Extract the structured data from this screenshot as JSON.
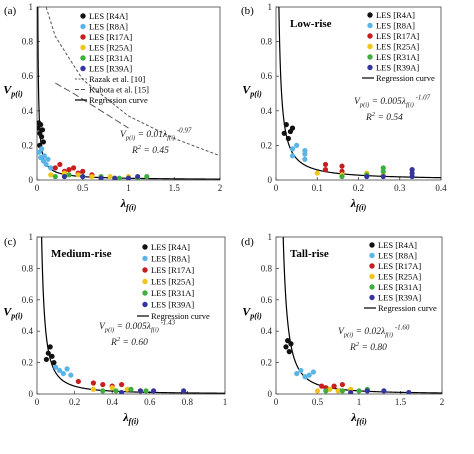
{
  "palette": {
    "R4A": "#111111",
    "R8A": "#5ab4e8",
    "R17A": "#c81e1e",
    "R25A": "#f0c419",
    "R31A": "#3fae3f",
    "R39A": "#3535a0"
  },
  "chart_data": [
    {
      "type": "scatter",
      "panel_label": "(a)",
      "title": "",
      "xlabel": "λf(i)",
      "ylabel": "Vp(i)",
      "xlim": [
        0,
        2
      ],
      "ylim": [
        0,
        1
      ],
      "xticks": [
        "0",
        "0.5",
        "1",
        "1.5",
        "2"
      ],
      "yticks": [
        "0",
        "0.2",
        "0.4",
        "0.6",
        "0.8",
        "1"
      ],
      "grid": false,
      "legend_position": "top-right",
      "equation": {
        "coef": "0.01",
        "exponent": "-0.97",
        "r2": "0.45"
      },
      "references": [
        {
          "name": "Razak et al. [10]",
          "style": "dashed-short",
          "points": [
            [
              0.1,
              1.0
            ],
            [
              0.2,
              0.83
            ],
            [
              0.5,
              0.58
            ],
            [
              1.0,
              0.37
            ],
            [
              1.5,
              0.24
            ],
            [
              2.0,
              0.14
            ]
          ]
        },
        {
          "name": "Kubota et al. [15]",
          "style": "dashed-long",
          "points": [
            [
              0.2,
              0.56
            ],
            [
              0.4,
              0.5
            ],
            [
              0.7,
              0.4
            ],
            [
              1.0,
              0.3
            ]
          ]
        }
      ],
      "curve": {
        "name": "Regression curve",
        "a": 0.01,
        "b": -0.97
      },
      "series": [
        {
          "name": "LES [R4A]",
          "points": [
            [
              0.01,
              0.3
            ],
            [
              0.02,
              0.33
            ],
            [
              0.03,
              0.27
            ],
            [
              0.04,
              0.32
            ],
            [
              0.05,
              0.25
            ],
            [
              0.06,
              0.29
            ],
            [
              0.07,
              0.22
            ],
            [
              0.03,
              0.2
            ]
          ]
        },
        {
          "name": "LES [R8A]",
          "points": [
            [
              0.02,
              0.16
            ],
            [
              0.04,
              0.13
            ],
            [
              0.05,
              0.18
            ],
            [
              0.07,
              0.11
            ],
            [
              0.08,
              0.14
            ],
            [
              0.1,
              0.09
            ],
            [
              0.12,
              0.12
            ],
            [
              0.15,
              0.07
            ]
          ]
        },
        {
          "name": "LES [R17A]",
          "points": [
            [
              0.2,
              0.07
            ],
            [
              0.25,
              0.09
            ],
            [
              0.3,
              0.05
            ],
            [
              0.35,
              0.06
            ],
            [
              0.4,
              0.07
            ],
            [
              0.45,
              0.04
            ],
            [
              0.5,
              0.05
            ],
            [
              0.6,
              0.03
            ]
          ]
        },
        {
          "name": "LES [R25A]",
          "points": [
            [
              0.15,
              0.03
            ],
            [
              0.3,
              0.04
            ],
            [
              0.45,
              0.03
            ],
            [
              0.6,
              0.02
            ],
            [
              0.8,
              0.02
            ],
            [
              1.0,
              0.02
            ]
          ]
        },
        {
          "name": "LES [R31A]",
          "points": [
            [
              0.2,
              0.02
            ],
            [
              0.35,
              0.03
            ],
            [
              0.5,
              0.02
            ],
            [
              0.7,
              0.02
            ],
            [
              0.9,
              0.01
            ],
            [
              1.1,
              0.01
            ],
            [
              1.2,
              0.02
            ]
          ]
        },
        {
          "name": "LES [R39A]",
          "points": [
            [
              0.3,
              0.02
            ],
            [
              0.5,
              0.02
            ],
            [
              0.7,
              0.01
            ],
            [
              0.85,
              0.01
            ],
            [
              1.0,
              0.01
            ],
            [
              1.1,
              0.02
            ]
          ]
        }
      ]
    },
    {
      "type": "scatter",
      "panel_label": "(b)",
      "title": "Low-rise",
      "xlabel": "λf(i)",
      "ylabel": "Vp(i)",
      "xlim": [
        0,
        0.4
      ],
      "ylim": [
        0,
        1
      ],
      "xticks": [
        "0",
        "0.1",
        "0.2",
        "0.3",
        "0.4"
      ],
      "yticks": [
        "0",
        "0.2",
        "0.4",
        "0.6",
        "0.8",
        "1"
      ],
      "grid": false,
      "legend_position": "top-right",
      "equation": {
        "coef": "0.005",
        "exponent": "-1.07",
        "r2": "0.54"
      },
      "curve": {
        "name": "Regression curve",
        "a": 0.005,
        "b": -1.07
      },
      "series": [
        {
          "name": "LES [R4A]",
          "points": [
            [
              0.02,
              0.27
            ],
            [
              0.025,
              0.32
            ],
            [
              0.03,
              0.24
            ],
            [
              0.035,
              0.28
            ],
            [
              0.04,
              0.3
            ]
          ]
        },
        {
          "name": "LES [R8A]",
          "points": [
            [
              0.04,
              0.14
            ],
            [
              0.04,
              0.18
            ],
            [
              0.05,
              0.2
            ],
            [
              0.07,
              0.15
            ],
            [
              0.07,
              0.12
            ],
            [
              0.07,
              0.17
            ]
          ]
        },
        {
          "name": "LES [R17A]",
          "points": [
            [
              0.12,
              0.06
            ],
            [
              0.12,
              0.09
            ],
            [
              0.16,
              0.05
            ],
            [
              0.16,
              0.08
            ]
          ]
        },
        {
          "name": "LES [R25A]",
          "points": [
            [
              0.1,
              0.04
            ],
            [
              0.16,
              0.03
            ],
            [
              0.22,
              0.04
            ],
            [
              0.26,
              0.03
            ]
          ]
        },
        {
          "name": "LES [R31A]",
          "points": [
            [
              0.16,
              0.02
            ],
            [
              0.22,
              0.03
            ],
            [
              0.26,
              0.05
            ],
            [
              0.26,
              0.07
            ]
          ]
        },
        {
          "name": "LES [R39A]",
          "points": [
            [
              0.22,
              0.02
            ],
            [
              0.26,
              0.02
            ],
            [
              0.33,
              0.02
            ],
            [
              0.33,
              0.04
            ],
            [
              0.33,
              0.06
            ]
          ]
        }
      ]
    },
    {
      "type": "scatter",
      "panel_label": "(c)",
      "title": "Medium-rise",
      "xlabel": "λf(i)",
      "ylabel": "Vp(i)",
      "xlim": [
        0,
        1
      ],
      "ylim": [
        0,
        1
      ],
      "xticks": [
        "0",
        "0.2",
        "0.4",
        "0.6",
        "0.8",
        "1"
      ],
      "yticks": [
        "0",
        "0.2",
        "0.4",
        "0.6",
        "0.8",
        "1"
      ],
      "grid": false,
      "legend_position": "top-right",
      "equation": {
        "coef": "0.005",
        "exponent": "-1.43",
        "r2": "0.60"
      },
      "curve": {
        "name": "Regression curve",
        "a": 0.005,
        "b": -1.43
      },
      "series": [
        {
          "name": "LES [R4A]",
          "points": [
            [
              0.05,
              0.22
            ],
            [
              0.06,
              0.26
            ],
            [
              0.07,
              0.3
            ],
            [
              0.08,
              0.24
            ],
            [
              0.09,
              0.2
            ]
          ]
        },
        {
          "name": "LES [R8A]",
          "points": [
            [
              0.1,
              0.17
            ],
            [
              0.12,
              0.15
            ],
            [
              0.14,
              0.13
            ],
            [
              0.16,
              0.16
            ],
            [
              0.18,
              0.12
            ]
          ]
        },
        {
          "name": "LES [R17A]",
          "points": [
            [
              0.22,
              0.08
            ],
            [
              0.3,
              0.07
            ],
            [
              0.35,
              0.06
            ],
            [
              0.4,
              0.05
            ],
            [
              0.45,
              0.06
            ]
          ]
        },
        {
          "name": "LES [R25A]",
          "points": [
            [
              0.3,
              0.03
            ],
            [
              0.4,
              0.04
            ],
            [
              0.48,
              0.03
            ],
            [
              0.55,
              0.02
            ]
          ]
        },
        {
          "name": "LES [R31A]",
          "points": [
            [
              0.35,
              0.02
            ],
            [
              0.42,
              0.02
            ],
            [
              0.5,
              0.03
            ],
            [
              0.58,
              0.02
            ]
          ]
        },
        {
          "name": "LES [R39A]",
          "points": [
            [
              0.45,
              0.01
            ],
            [
              0.55,
              0.02
            ],
            [
              0.62,
              0.02
            ],
            [
              0.78,
              0.02
            ]
          ]
        }
      ]
    },
    {
      "type": "scatter",
      "panel_label": "(d)",
      "title": "Tall-rise",
      "xlabel": "λf(i)",
      "ylabel": "Vp(i)",
      "xlim": [
        0,
        2
      ],
      "ylim": [
        0,
        1
      ],
      "xticks": [
        "0",
        "0.5",
        "1",
        "1.5",
        "2"
      ],
      "yticks": [
        "0",
        "0.2",
        "0.4",
        "0.6",
        "0.8",
        "1"
      ],
      "grid": false,
      "legend_position": "top-right",
      "equation": {
        "coef": "0.02",
        "exponent": "-1.60",
        "r2": "0.80"
      },
      "curve": {
        "name": "Regression curve",
        "a": 0.02,
        "b": -1.6
      },
      "series": [
        {
          "name": "LES [R4A]",
          "points": [
            [
              0.12,
              0.3
            ],
            [
              0.14,
              0.34
            ],
            [
              0.16,
              0.27
            ],
            [
              0.18,
              0.32
            ]
          ]
        },
        {
          "name": "LES [R8A]",
          "points": [
            [
              0.25,
              0.13
            ],
            [
              0.3,
              0.15
            ],
            [
              0.35,
              0.11
            ],
            [
              0.4,
              0.12
            ],
            [
              0.45,
              0.14
            ]
          ]
        },
        {
          "name": "LES [R17A]",
          "points": [
            [
              0.55,
              0.05
            ],
            [
              0.6,
              0.04
            ],
            [
              0.7,
              0.05
            ],
            [
              0.8,
              0.06
            ]
          ]
        },
        {
          "name": "LES [R25A]",
          "points": [
            [
              0.5,
              0.02
            ],
            [
              0.65,
              0.03
            ],
            [
              0.75,
              0.02
            ],
            [
              0.9,
              0.03
            ]
          ]
        },
        {
          "name": "LES [R31A]",
          "points": [
            [
              0.6,
              0.02
            ],
            [
              0.8,
              0.02
            ],
            [
              1.0,
              0.02
            ],
            [
              1.1,
              0.03
            ]
          ]
        },
        {
          "name": "LES [R39A]",
          "points": [
            [
              0.9,
              0.01
            ],
            [
              1.1,
              0.02
            ],
            [
              1.3,
              0.02
            ],
            [
              1.6,
              0.01
            ]
          ]
        }
      ]
    }
  ]
}
